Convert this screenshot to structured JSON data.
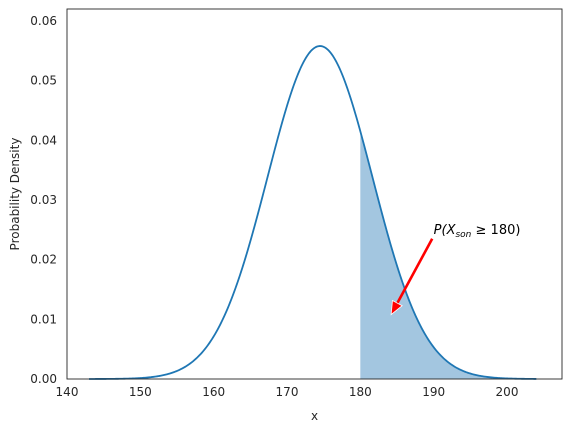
{
  "chart_data": {
    "type": "line",
    "distribution": {
      "name": "normal",
      "mean": 174.5,
      "sd": 7.15
    },
    "x_range": [
      143,
      204
    ],
    "shaded_region": {
      "from": 180,
      "to": 204,
      "label": "P(X_son ≥ 180)"
    },
    "xlabel": "x",
    "ylabel": "Probability Density",
    "xlim": [
      140,
      207.5
    ],
    "ylim": [
      0,
      0.062
    ],
    "xticks": [
      140,
      150,
      160,
      170,
      180,
      190,
      200
    ],
    "xtick_labels": [
      "140",
      "150",
      "160",
      "170",
      "180",
      "190",
      "200"
    ],
    "yticks": [
      0.0,
      0.01,
      0.02,
      0.03,
      0.04,
      0.05,
      0.06
    ],
    "ytick_labels": [
      "0.00",
      "0.01",
      "0.02",
      "0.03",
      "0.04",
      "0.05",
      "0.06"
    ],
    "grid": false,
    "colors": {
      "line": "#1f77b4",
      "fill": "#a3c6e0",
      "arrow": "#ff0000"
    },
    "annotation": {
      "parts": {
        "prefix": "P(X",
        "subscript": "son",
        "suffix": " ≥ 180)"
      },
      "text_at": [
        190,
        0.025
      ],
      "arrow_from": [
        189.8,
        0.0235
      ],
      "arrow_to": [
        184.2,
        0.0108
      ]
    }
  }
}
